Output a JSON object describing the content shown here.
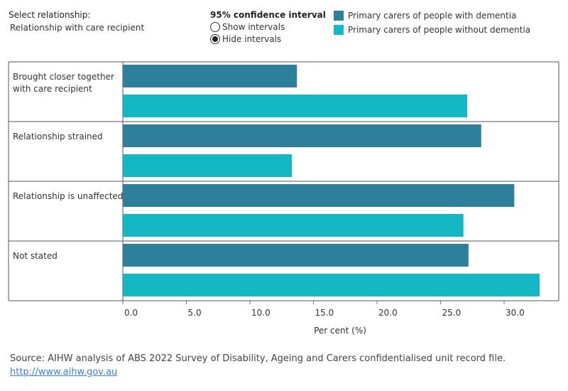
{
  "filters": {
    "relationship_label": "Select relationship:",
    "relationship_value": "Relationship with care recipient"
  },
  "confidence": {
    "title": "95% confidence interval",
    "options": [
      "Show intervals",
      "Hide intervals"
    ],
    "selected": "Hide intervals"
  },
  "legend": [
    {
      "label": "Primary carers of people with dementia",
      "color": "#2e7f99"
    },
    {
      "label": "Primary carers of people without dementia",
      "color": "#14b8c4"
    }
  ],
  "chart_data": {
    "type": "bar",
    "orientation": "horizontal",
    "categories": [
      [
        "Brought closer together",
        "with care recipient"
      ],
      [
        "Relationship strained"
      ],
      [
        "Relationship is unaffected"
      ],
      [
        "Not stated"
      ]
    ],
    "series": [
      {
        "name": "Primary carers of people with dementia",
        "values": [
          13.7,
          28.2,
          30.8,
          27.2
        ]
      },
      {
        "name": "Primary carers of people without dementia",
        "values": [
          27.1,
          13.3,
          26.8,
          32.8
        ]
      }
    ],
    "xlabel": "Per cent (%)",
    "xlim": [
      0,
      34
    ],
    "xticks": [
      "0.0",
      "5.0",
      "10.0",
      "15.0",
      "20.0",
      "25.0",
      "30.0"
    ],
    "grid": false,
    "legend_position": "top-right"
  },
  "footer": {
    "source": "Source: AIHW analysis of ABS 2022 Survey of Disability, Ageing and Carers confidentialised unit record file.",
    "link": "http://www.aihw.gov.au"
  }
}
